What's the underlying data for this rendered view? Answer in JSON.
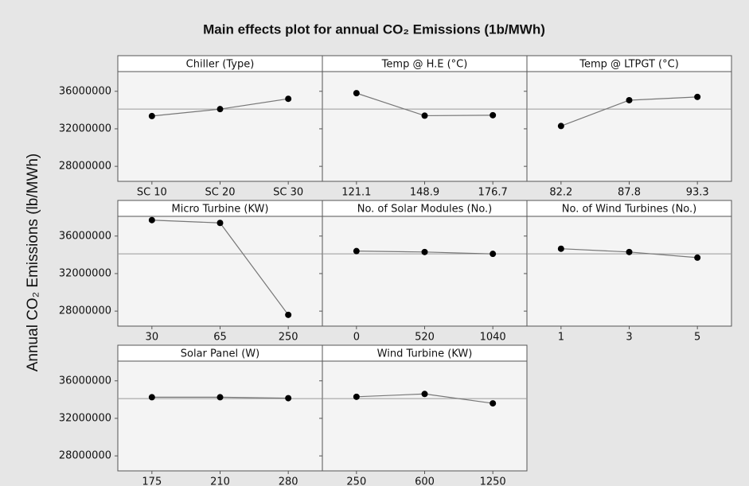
{
  "chart_data": {
    "type": "line",
    "title": "Main effects plot for annual CO₂ Emissions (1b/MWh)",
    "ylabel": "Annual CO₂ Emissions (lb/MWh)",
    "ylim": [
      26400000,
      38100000
    ],
    "yticks": [
      28000000,
      32000000,
      36000000
    ],
    "reference_line": 34100000,
    "color": "#000000",
    "panels": [
      {
        "title": "Chiller (Type)",
        "categories": [
          "SC 10",
          "SC 20",
          "SC 30"
        ],
        "values": [
          33360000,
          34100000,
          35200000
        ]
      },
      {
        "title": "Temp @ H.E (°C)",
        "categories": [
          "121.1",
          "148.9",
          "176.7"
        ],
        "values": [
          35800000,
          33400000,
          33450000
        ]
      },
      {
        "title": "Temp @ LTPGT (°C)",
        "categories": [
          "82.2",
          "87.8",
          "93.3"
        ],
        "values": [
          32300000,
          35050000,
          35400000
        ]
      },
      {
        "title": "Micro Turbine (KW)",
        "categories": [
          "30",
          "65",
          "250"
        ],
        "values": [
          37700000,
          37400000,
          27600000
        ]
      },
      {
        "title": "No. of Solar Modules (No.)",
        "categories": [
          "0",
          "520",
          "1040"
        ],
        "values": [
          34400000,
          34300000,
          34100000
        ]
      },
      {
        "title": "No. of Wind Turbines (No.)",
        "categories": [
          "1",
          "3",
          "5"
        ],
        "values": [
          34650000,
          34300000,
          33700000
        ]
      },
      {
        "title": "Solar Panel (W)",
        "categories": [
          "175",
          "210",
          "280"
        ],
        "values": [
          34250000,
          34250000,
          34150000
        ]
      },
      {
        "title": "Wind Turbine (KW)",
        "categories": [
          "250",
          "600",
          "1250"
        ],
        "values": [
          34300000,
          34600000,
          33600000
        ]
      }
    ]
  }
}
